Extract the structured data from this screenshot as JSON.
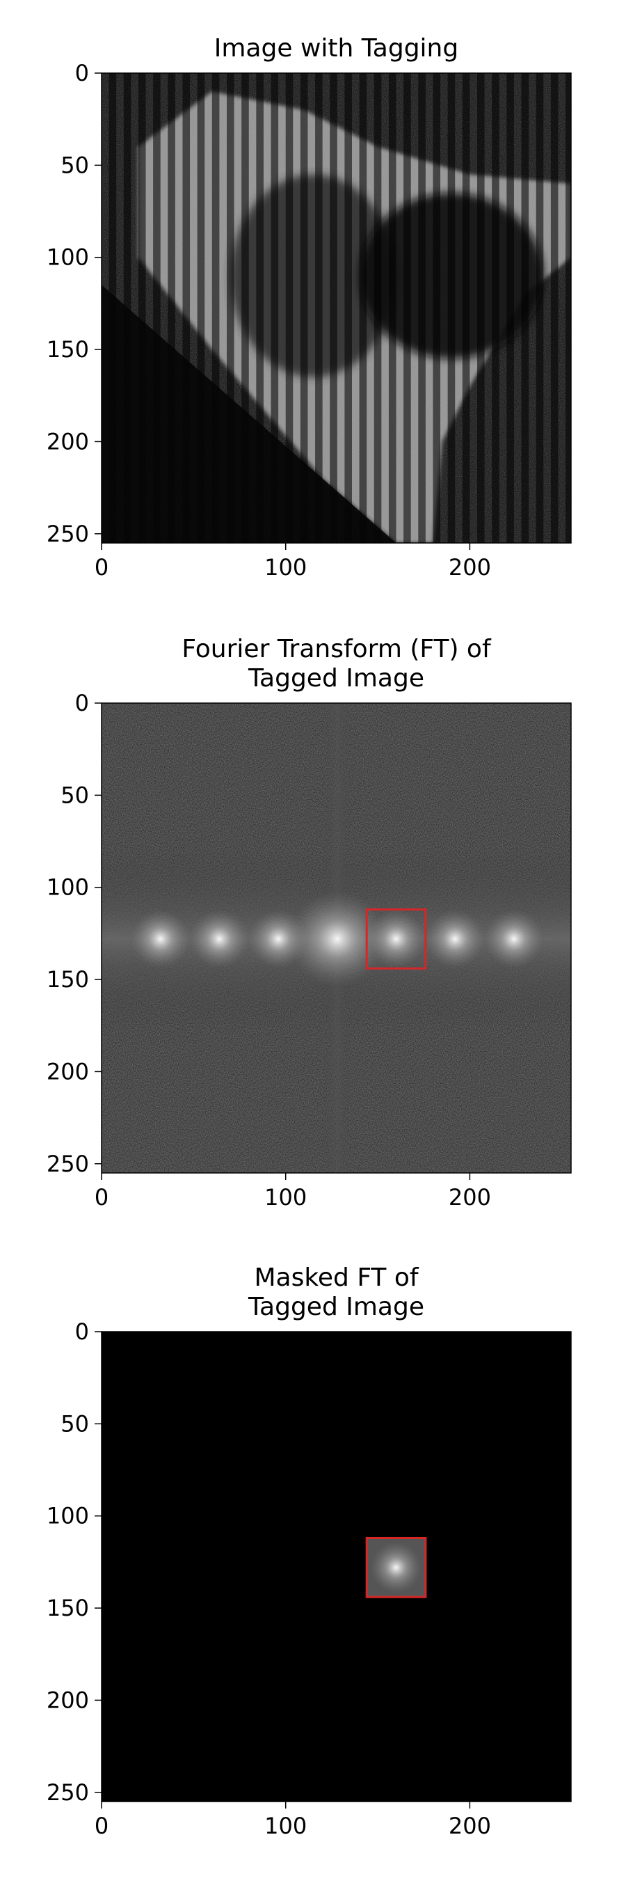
{
  "chart_data": [
    {
      "type": "heatmap",
      "panel": "tagged-image",
      "title_lines": [
        "Image with Tagging"
      ],
      "xlim": [
        0,
        255
      ],
      "ylim": [
        255,
        0
      ],
      "xticks": [
        0,
        100,
        200
      ],
      "yticks": [
        0,
        50,
        100,
        150,
        200,
        250
      ],
      "colormap": "gray",
      "grid": false
    },
    {
      "type": "heatmap",
      "panel": "ft-spectrum",
      "title_lines": [
        "Fourier Transform (FT) of",
        "Tagged Image"
      ],
      "xlim": [
        0,
        255
      ],
      "ylim": [
        255,
        0
      ],
      "xticks": [
        0,
        100,
        200
      ],
      "yticks": [
        0,
        50,
        100,
        150,
        200,
        250
      ],
      "colormap": "gray",
      "grid": false,
      "peaks_row": 128,
      "peaks_x": [
        32,
        64,
        96,
        128,
        160,
        192,
        224
      ],
      "highlight_box": {
        "x0": 144,
        "x1": 176,
        "y0": 112,
        "y1": 144,
        "color": "#d62728"
      }
    },
    {
      "type": "heatmap",
      "panel": "masked-ft",
      "title_lines": [
        "Masked FT of",
        "Tagged Image"
      ],
      "xlim": [
        0,
        255
      ],
      "ylim": [
        255,
        0
      ],
      "xticks": [
        0,
        100,
        200
      ],
      "yticks": [
        0,
        50,
        100,
        150,
        200,
        250
      ],
      "colormap": "gray",
      "grid": false,
      "highlight_box": {
        "x0": 144,
        "x1": 176,
        "y0": 112,
        "y1": 144,
        "color": "#d62728"
      }
    }
  ]
}
